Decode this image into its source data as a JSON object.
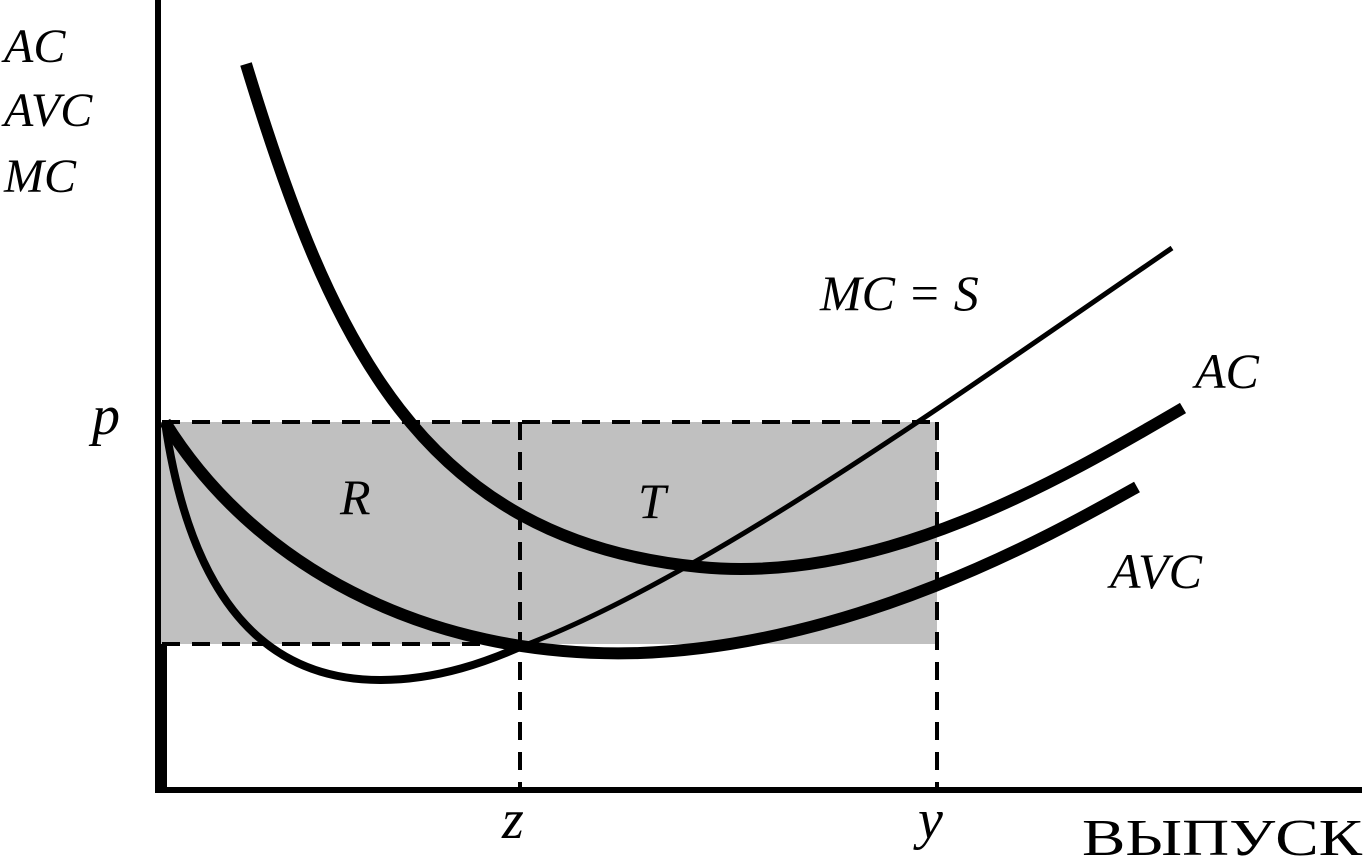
{
  "y_axis_labels": [
    "AC",
    "AVC",
    "MC"
  ],
  "x_axis_label": "ВЫПУСК",
  "price_label": "p",
  "tick_labels": {
    "z": "z",
    "y": "y"
  },
  "curve_labels": {
    "mc": "MC = S",
    "ac": "AC",
    "avc": "AVC"
  },
  "region_labels": {
    "r": "R",
    "t": "T"
  },
  "colors": {
    "line": "#000000",
    "shade": "#c0c0c0",
    "background": "#ffffff"
  }
}
